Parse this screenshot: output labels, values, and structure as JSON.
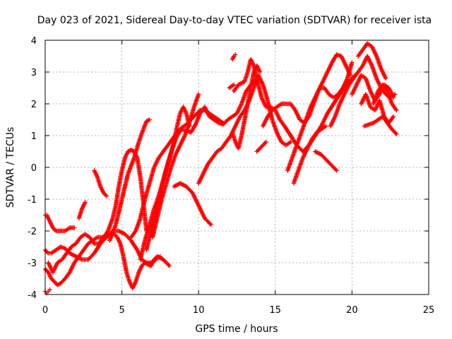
{
  "chart_data": {
    "type": "scatter",
    "title": "Day 023 of 2021, Sidereal Day-to-day VTEC variation (SDTVAR) for receiver ista",
    "xlabel": "GPS time / hours",
    "ylabel": "SDTVAR / TECUs",
    "xlim": [
      0,
      25
    ],
    "ylim": [
      -4,
      4
    ],
    "x_ticks": [
      "0",
      "5",
      "10",
      "15",
      "20",
      "25"
    ],
    "y_ticks": [
      "-4",
      "-3",
      "-2",
      "-1",
      "0",
      "1",
      "2",
      "3",
      "4"
    ],
    "grid": true,
    "marker": "+",
    "color": "#ff0000",
    "series": [
      {
        "x": [
          0.0,
          0.2,
          0.4,
          0.6,
          0.8,
          1.0,
          1.3,
          1.6,
          1.9,
          2.2,
          2.5,
          2.8,
          3.1,
          3.4,
          3.7,
          4.0,
          4.3,
          4.5,
          4.7,
          4.9,
          5.1,
          5.3,
          5.5,
          5.7,
          5.9,
          6.1,
          6.3,
          6.5,
          6.7,
          6.9,
          7.1,
          7.3,
          7.5,
          7.7,
          7.9,
          8.1
        ],
        "y": [
          -3.2,
          -3.3,
          -3.5,
          -3.6,
          -3.7,
          -3.65,
          -3.5,
          -3.3,
          -3.0,
          -2.8,
          -2.6,
          -2.4,
          -2.3,
          -2.2,
          -2.2,
          -2.15,
          -2.1,
          -2.1,
          -2.2,
          -2.4,
          -2.8,
          -3.3,
          -3.6,
          -3.8,
          -3.6,
          -3.3,
          -3.1,
          -3.0,
          -3.05,
          -3.1,
          -2.9,
          -2.8,
          -2.85,
          -2.9,
          -3.0,
          -3.1
        ]
      },
      {
        "x": [
          0.2,
          0.5,
          0.8,
          1.1,
          1.4,
          1.7,
          2.0,
          2.3,
          2.6,
          2.9,
          3.2,
          3.5,
          3.8,
          4.1,
          4.4,
          4.6,
          4.8,
          5.0,
          5.2,
          5.4,
          5.6,
          5.8,
          6.0,
          6.2,
          6.4,
          6.6
        ],
        "y": [
          -3.0,
          -3.3,
          -3.0,
          -2.9,
          -2.7,
          -2.5,
          -2.4,
          -2.2,
          -2.1,
          -2.2,
          -2.4,
          -2.4,
          -2.2,
          -2.0,
          -1.6,
          -1.2,
          -0.6,
          -0.1,
          0.3,
          0.5,
          0.55,
          0.5,
          0.3,
          -0.3,
          -1.1,
          -2.0
        ]
      },
      {
        "x": [
          0.0,
          0.1,
          0.2,
          0.3,
          0.5,
          0.7,
          1.0,
          1.3,
          1.6,
          1.9
        ],
        "y": [
          -1.5,
          -1.5,
          -1.6,
          -1.7,
          -1.9,
          -2.0,
          -2.0,
          -2.0,
          -1.9,
          -1.9
        ]
      },
      {
        "x": [
          0.0,
          0.2,
          0.4,
          0.7,
          1.0,
          1.3,
          1.6,
          2.0,
          2.4,
          2.8,
          3.2,
          3.6,
          4.0,
          4.4,
          4.8,
          5.2,
          5.6,
          6.0,
          6.3,
          6.6,
          6.9,
          7.2,
          7.5
        ],
        "y": [
          -2.6,
          -2.7,
          -2.7,
          -2.6,
          -2.5,
          -2.55,
          -2.7,
          -2.8,
          -2.9,
          -2.9,
          -2.7,
          -2.4,
          -2.2,
          -2.0,
          -2.0,
          -2.1,
          -2.3,
          -2.6,
          -2.9,
          -3.0,
          -3.0,
          -2.9,
          -2.8
        ]
      },
      {
        "x": [
          0.0,
          0.1,
          0.2,
          0.3
        ],
        "y": [
          -3.9,
          -3.95,
          -3.9,
          -3.85
        ]
      },
      {
        "x": [
          3.2,
          3.4,
          3.6,
          3.8,
          4.0
        ],
        "y": [
          -0.1,
          -0.3,
          -0.6,
          -0.8,
          -0.9
        ]
      },
      {
        "x": [
          2.2,
          2.4,
          2.6
        ],
        "y": [
          -1.6,
          -1.3,
          -1.1
        ]
      },
      {
        "x": [
          4.2,
          4.6,
          5.0,
          5.4,
          5.8,
          6.1,
          6.4,
          6.6,
          6.8
        ],
        "y": [
          -2.3,
          -1.8,
          -1.0,
          -0.2,
          0.3,
          0.8,
          1.2,
          1.45,
          1.5
        ]
      },
      {
        "x": [
          5.6,
          5.9,
          6.2,
          6.5,
          6.8,
          7.1,
          7.4,
          7.7,
          8.0,
          8.3,
          8.6,
          8.9,
          9.2,
          9.5,
          9.8,
          10.1,
          10.4,
          10.7,
          11.0,
          11.3,
          11.6
        ],
        "y": [
          -2.2,
          -2.0,
          -1.6,
          -1.0,
          -0.5,
          0.0,
          0.3,
          0.5,
          0.7,
          0.9,
          1.1,
          1.25,
          1.35,
          1.5,
          1.65,
          1.8,
          1.8,
          1.7,
          1.6,
          1.5,
          1.4
        ]
      },
      {
        "x": [
          6.2,
          6.5,
          6.8,
          7.1,
          7.4,
          7.7,
          8.0,
          8.3,
          8.6,
          8.9,
          9.2,
          9.5,
          9.8,
          10.1,
          10.4,
          10.7,
          11.0,
          11.3,
          11.6,
          11.9,
          12.2,
          12.5,
          12.8,
          13.1,
          13.4,
          13.7
        ],
        "y": [
          -2.9,
          -2.3,
          -1.8,
          -1.3,
          -0.9,
          -0.4,
          0.1,
          0.6,
          1.0,
          1.2,
          1.15,
          1.1,
          1.35,
          1.7,
          1.9,
          1.6,
          1.5,
          1.4,
          1.35,
          1.5,
          1.6,
          1.7,
          2.0,
          2.4,
          2.6,
          2.75
        ]
      },
      {
        "x": [
          6.6,
          6.9,
          7.2,
          7.5,
          7.8,
          8.1,
          8.4,
          8.6,
          8.8,
          9.0,
          9.2,
          9.4
        ],
        "y": [
          -2.6,
          -2.0,
          -1.4,
          -0.8,
          -0.2,
          0.3,
          0.8,
          1.3,
          1.7,
          1.9,
          1.7,
          1.3
        ]
      },
      {
        "x": [
          7.0,
          7.3,
          7.6,
          7.9,
          8.2,
          8.5,
          8.8,
          9.1,
          9.4,
          9.7,
          10.0
        ],
        "y": [
          -2.2,
          -1.6,
          -1.0,
          -0.5,
          0.0,
          0.4,
          0.7,
          1.0,
          1.4,
          1.9,
          2.3
        ]
      },
      {
        "x": [
          8.4,
          8.8,
          9.2,
          9.6,
          10.0,
          10.4,
          10.8
        ],
        "y": [
          -0.6,
          -0.5,
          -0.6,
          -0.8,
          -1.2,
          -1.6,
          -1.8
        ]
      },
      {
        "x": [
          10.0,
          10.3,
          10.6,
          10.9,
          11.2,
          11.5,
          11.8,
          12.1,
          12.4,
          12.7,
          13.0,
          13.3,
          13.6,
          13.9,
          14.2,
          14.5,
          14.8,
          15.1,
          15.4,
          15.7,
          16.0
        ],
        "y": [
          -0.5,
          -0.2,
          0.1,
          0.3,
          0.5,
          0.6,
          0.8,
          1.0,
          1.3,
          1.6,
          1.8,
          2.1,
          2.5,
          2.9,
          2.6,
          2.1,
          1.5,
          1.1,
          0.8,
          0.7,
          0.8
        ]
      },
      {
        "x": [
          12.2,
          12.4,
          12.6,
          12.8,
          13.0,
          13.2,
          13.4,
          13.6,
          13.8,
          14.0
        ],
        "y": [
          1.1,
          0.8,
          0.6,
          1.0,
          1.5,
          2.0,
          2.5,
          3.0,
          3.2,
          3.0
        ]
      },
      {
        "x": [
          12.3,
          12.6,
          13.0,
          13.2,
          13.4,
          13.6,
          13.8,
          14.1,
          14.4,
          14.7,
          15.0,
          15.3,
          15.6,
          16.0,
          16.4,
          16.8,
          17.2,
          17.6,
          18.0,
          18.4,
          18.8,
          19.2,
          19.6,
          20.0,
          20.4
        ],
        "y": [
          2.4,
          2.6,
          2.7,
          3.0,
          3.4,
          3.2,
          2.8,
          2.2,
          1.9,
          1.9,
          1.8,
          1.5,
          1.3,
          1.0,
          0.7,
          0.5,
          0.7,
          1.0,
          1.3,
          1.7,
          2.0,
          2.3,
          2.6,
          2.8,
          3.0
        ]
      },
      {
        "x": [
          12.0,
          12.3
        ],
        "y": [
          2.5,
          2.6
        ]
      },
      {
        "x": [
          12.2,
          12.3,
          12.4
        ],
        "y": [
          3.4,
          3.5,
          3.55
        ]
      },
      {
        "x": [
          13.8,
          14.0,
          14.2,
          14.4
        ],
        "y": [
          0.5,
          0.6,
          0.7,
          0.8
        ]
      },
      {
        "x": [
          14.2,
          14.5,
          14.8,
          15.1,
          15.4,
          15.7,
          16.0,
          16.3,
          16.6,
          16.9,
          17.2,
          17.5,
          17.8,
          18.1,
          18.4,
          18.7,
          19.0,
          19.3,
          19.6,
          19.9
        ],
        "y": [
          1.3,
          1.6,
          1.8,
          1.9,
          2.0,
          2.0,
          2.0,
          1.8,
          1.5,
          1.4,
          1.6,
          2.0,
          2.4,
          2.7,
          3.0,
          3.3,
          3.55,
          3.5,
          3.2,
          2.9
        ]
      },
      {
        "x": [
          15.8,
          16.1,
          16.4,
          16.7,
          17.0,
          17.3,
          17.6,
          17.9,
          18.2,
          18.5,
          18.8,
          19.1,
          19.4,
          19.7,
          20.0
        ],
        "y": [
          -0.1,
          0.3,
          0.7,
          1.1,
          1.5,
          1.9,
          2.2,
          2.5,
          2.5,
          2.3,
          2.2,
          2.3,
          2.5,
          2.8,
          3.3
        ]
      },
      {
        "x": [
          16.2,
          16.5,
          16.8,
          17.1,
          17.4,
          17.7,
          18.0,
          18.3
        ],
        "y": [
          -0.5,
          -0.1,
          0.3,
          0.6,
          0.9,
          1.1,
          1.2,
          1.3
        ]
      },
      {
        "x": [
          17.6,
          18.0,
          18.4,
          18.8,
          19.0
        ],
        "y": [
          0.5,
          0.4,
          0.2,
          0.0,
          -0.1
        ]
      },
      {
        "x": [
          18.6,
          18.9,
          19.2,
          19.5,
          19.8,
          20.1,
          20.4,
          20.7,
          21.0,
          21.3,
          21.6,
          21.9,
          22.2,
          22.5,
          22.8
        ],
        "y": [
          1.3,
          1.6,
          2.0,
          2.3,
          2.6,
          2.8,
          3.0,
          3.2,
          3.5,
          3.2,
          2.8,
          2.5,
          2.3,
          2.2,
          2.3
        ]
      },
      {
        "x": [
          20.0,
          20.3,
          20.6,
          20.9,
          21.2,
          21.5,
          21.8,
          22.1,
          22.4,
          22.7
        ],
        "y": [
          2.3,
          2.6,
          2.9,
          2.8,
          2.4,
          2.1,
          2.3,
          2.6,
          2.5,
          2.2
        ]
      },
      {
        "x": [
          20.4,
          20.7,
          21.0,
          21.3,
          21.6,
          21.9,
          22.2
        ],
        "y": [
          3.5,
          3.7,
          3.9,
          3.8,
          3.5,
          3.1,
          2.8
        ]
      },
      {
        "x": [
          20.6,
          20.9,
          21.2,
          21.5,
          21.8,
          22.1,
          22.4,
          22.7
        ],
        "y": [
          2.0,
          2.3,
          1.9,
          1.8,
          2.1,
          1.6,
          1.4,
          1.6
        ]
      },
      {
        "x": [
          20.8,
          21.1,
          21.4,
          21.7,
          22.0,
          22.3,
          22.6,
          22.9
        ],
        "y": [
          1.3,
          1.35,
          1.4,
          1.5,
          1.6,
          1.4,
          1.2,
          1.05
        ]
      },
      {
        "x": [
          21.4,
          21.7,
          22.0,
          22.3,
          22.6,
          22.9
        ],
        "y": [
          2.0,
          2.4,
          2.6,
          2.4,
          2.0,
          1.8
        ]
      }
    ]
  }
}
